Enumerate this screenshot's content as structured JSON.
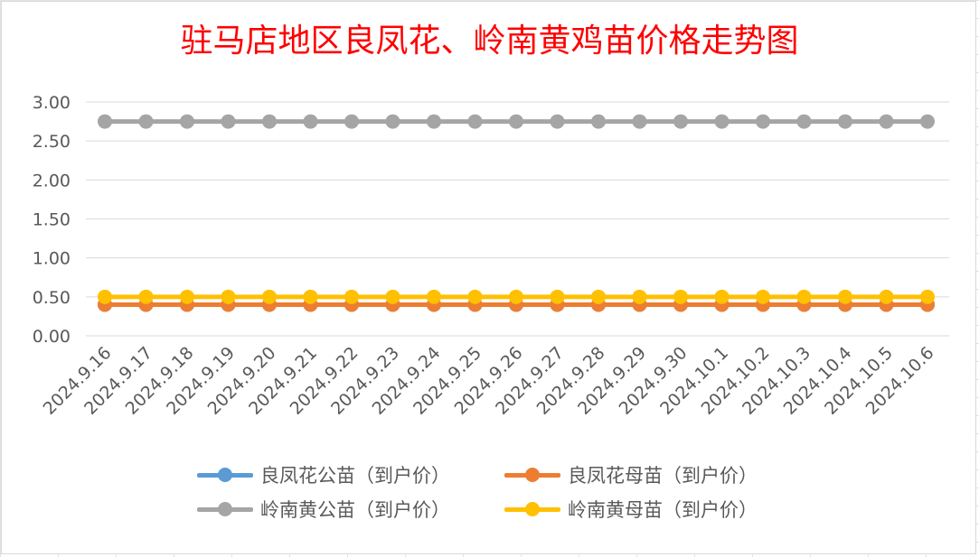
{
  "chart_data": {
    "type": "line",
    "title": "驻马店地区良凤花、岭南黄鸡苗价格走势图",
    "xlabel": "",
    "ylabel": "",
    "ylim": [
      0,
      3
    ],
    "yticks": [
      "0.00",
      "0.50",
      "1.00",
      "1.50",
      "2.00",
      "2.50",
      "3.00"
    ],
    "grid": "horizontal",
    "legend_position": "bottom",
    "categories": [
      "2024.9.16",
      "2024.9.17",
      "2024.9.18",
      "2024.9.19",
      "2024.9.20",
      "2024.9.21",
      "2024.9.22",
      "2024.9.23",
      "2024.9.24",
      "2024.9.25",
      "2024.9.26",
      "2024.9.27",
      "2024.9.28",
      "2024.9.29",
      "2024.9.30",
      "2024.10.1",
      "2024.10.2",
      "2024.10.3",
      "2024.10.4",
      "2024.10.5",
      "2024.10.6"
    ],
    "series": [
      {
        "name": "良凤花公苗（到户价）",
        "color": "#5b9bd5",
        "values": [
          0.4,
          0.4,
          0.4,
          0.4,
          0.4,
          0.4,
          0.4,
          0.4,
          0.4,
          0.4,
          0.4,
          0.4,
          0.4,
          0.4,
          0.4,
          0.4,
          0.4,
          0.4,
          0.4,
          0.4,
          0.4
        ]
      },
      {
        "name": "良凤花母苗（到户价）",
        "color": "#ed7d31",
        "values": [
          0.4,
          0.4,
          0.4,
          0.4,
          0.4,
          0.4,
          0.4,
          0.4,
          0.4,
          0.4,
          0.4,
          0.4,
          0.4,
          0.4,
          0.4,
          0.4,
          0.4,
          0.4,
          0.4,
          0.4,
          0.4
        ]
      },
      {
        "name": "岭南黄公苗（到户价）",
        "color": "#a5a5a5",
        "values": [
          2.75,
          2.75,
          2.75,
          2.75,
          2.75,
          2.75,
          2.75,
          2.75,
          2.75,
          2.75,
          2.75,
          2.75,
          2.75,
          2.75,
          2.75,
          2.75,
          2.75,
          2.75,
          2.75,
          2.75,
          2.75
        ]
      },
      {
        "name": "岭南黄母苗（到户价）",
        "color": "#ffc000",
        "values": [
          0.5,
          0.5,
          0.5,
          0.5,
          0.5,
          0.5,
          0.5,
          0.5,
          0.5,
          0.5,
          0.5,
          0.5,
          0.5,
          0.5,
          0.5,
          0.5,
          0.5,
          0.5,
          0.5,
          0.5,
          0.5
        ]
      }
    ]
  }
}
